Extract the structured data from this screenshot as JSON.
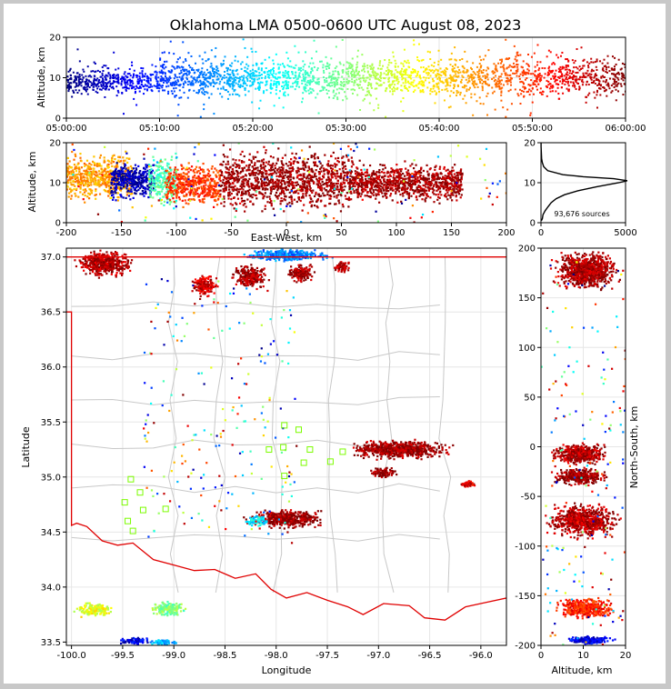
{
  "chart_data": [
    {
      "id": "time_height",
      "type": "scatter",
      "title": "Oklahoma LMA 0500-0600 UTC August 08, 2023",
      "xlabel": "",
      "ylabel": "Altitude, km",
      "x_ticks": [
        "05:00:00",
        "05:10:00",
        "05:20:00",
        "05:30:00",
        "05:40:00",
        "05:50:00",
        "06:00:00"
      ],
      "x_range_minutes": [
        0,
        60
      ],
      "y_ticks": [
        0,
        10,
        20
      ],
      "ylim": [
        0,
        20
      ],
      "color_encoding": "time of source, jet colormap (blue = 05:00, red = 06:00)"
    },
    {
      "id": "ew_height",
      "type": "scatter",
      "xlabel": "East-West, km",
      "ylabel": "Altitude, km",
      "x_ticks": [
        -200,
        -150,
        -100,
        -50,
        0,
        50,
        100,
        150,
        200
      ],
      "xlim": [
        -200,
        200
      ],
      "y_ticks": [
        0,
        10,
        20
      ],
      "ylim": [
        0,
        20
      ],
      "clusters": [
        {
          "x": [
            -200,
            -140
          ],
          "alt": [
            4,
            19
          ],
          "t": 0.72
        },
        {
          "x": [
            -160,
            -120
          ],
          "alt": [
            5,
            16
          ],
          "t": 0.05
        },
        {
          "x": [
            -125,
            -100
          ],
          "alt": [
            3,
            18
          ],
          "t": 0.45
        },
        {
          "x": [
            -110,
            -60
          ],
          "alt": [
            3,
            16
          ],
          "t": 0.82
        },
        {
          "x": [
            -60,
            60
          ],
          "alt": [
            1,
            20
          ],
          "t": 0.97
        },
        {
          "x": [
            60,
            160
          ],
          "alt": [
            4,
            16
          ],
          "t": 0.96
        }
      ]
    },
    {
      "id": "altitude_histogram",
      "type": "line",
      "x_ticks": [
        0,
        5000
      ],
      "xlim": [
        0,
        5000
      ],
      "y_ticks": [
        0,
        10,
        20
      ],
      "ylim": [
        0,
        20
      ],
      "annotation": "93,676 sources",
      "profile": {
        "altitude_km": [
          0.5,
          1,
          2,
          3,
          4,
          5,
          6,
          7,
          8,
          9,
          10,
          10.5,
          11,
          11.5,
          12,
          13,
          14,
          15,
          16,
          17,
          18,
          19,
          20
        ],
        "count": [
          20,
          80,
          120,
          250,
          420,
          600,
          900,
          1400,
          2200,
          3300,
          4600,
          5100,
          4300,
          2500,
          1300,
          400,
          160,
          80,
          40,
          25,
          15,
          8,
          4
        ]
      }
    },
    {
      "id": "plan_view",
      "type": "scatter",
      "xlabel": "Longitude",
      "ylabel": "Latitude",
      "x_ticks": [
        -100.0,
        -99.5,
        -99.0,
        -98.5,
        -98.0,
        -97.5,
        -97.0,
        -96.5,
        -96.0
      ],
      "xlim": [
        -100.05,
        -95.75
      ],
      "y_ticks": [
        33.5,
        34.0,
        34.5,
        35.0,
        35.5,
        36.0,
        36.5,
        37.0
      ],
      "ylim": [
        33.47,
        37.08
      ],
      "clusters": [
        {
          "lon": [
            -100.0,
            -99.35
          ],
          "lat": [
            36.8,
            37.08
          ],
          "t": 0.95
        },
        {
          "lon": [
            -98.85,
            -98.55
          ],
          "lat": [
            36.62,
            36.85
          ],
          "t": 0.92
        },
        {
          "lon": [
            -98.45,
            -98.05
          ],
          "lat": [
            36.7,
            36.95
          ],
          "t": 0.96
        },
        {
          "lon": [
            -97.92,
            -97.6
          ],
          "lat": [
            36.75,
            36.95
          ],
          "t": 0.97
        },
        {
          "lon": [
            -97.45,
            -97.25
          ],
          "lat": [
            36.85,
            36.97
          ],
          "t": 0.95
        },
        {
          "lon": [
            -98.4,
            -97.4
          ],
          "lat": [
            36.95,
            37.08
          ],
          "t": 0.25
        },
        {
          "lon": [
            -97.4,
            -96.2
          ],
          "lat": [
            35.15,
            35.35
          ],
          "t": 0.97
        },
        {
          "lon": [
            -97.1,
            -96.8
          ],
          "lat": [
            34.98,
            35.1
          ],
          "t": 0.98
        },
        {
          "lon": [
            -96.2,
            -96.05
          ],
          "lat": [
            34.9,
            34.97
          ],
          "t": 0.9
        },
        {
          "lon": [
            -98.35,
            -97.45
          ],
          "lat": [
            34.52,
            34.72
          ],
          "t": 0.97
        },
        {
          "lon": [
            -98.35,
            -98.05
          ],
          "lat": [
            34.55,
            34.65
          ],
          "t": 0.35
        },
        {
          "lon": [
            -100.0,
            -99.55
          ],
          "lat": [
            33.72,
            33.87
          ],
          "t": 0.6
        },
        {
          "lon": [
            -99.25,
            -98.85
          ],
          "lat": [
            33.72,
            33.88
          ],
          "t": 0.5
        },
        {
          "lon": [
            -99.55,
            -99.2
          ],
          "lat": [
            33.47,
            33.55
          ],
          "t": 0.1
        },
        {
          "lon": [
            -99.25,
            -98.95
          ],
          "lat": [
            33.47,
            33.53
          ],
          "t": 0.3
        }
      ],
      "stations": [
        {
          "lon": -97.92,
          "lat": 35.47
        },
        {
          "lon": -97.78,
          "lat": 35.43
        },
        {
          "lon": -97.93,
          "lat": 35.27
        },
        {
          "lon": -98.07,
          "lat": 35.25
        },
        {
          "lon": -97.67,
          "lat": 35.25
        },
        {
          "lon": -97.73,
          "lat": 35.13
        },
        {
          "lon": -97.47,
          "lat": 35.14
        },
        {
          "lon": -97.92,
          "lat": 35.01
        },
        {
          "lon": -97.35,
          "lat": 35.23
        },
        {
          "lon": -99.42,
          "lat": 34.98
        },
        {
          "lon": -99.33,
          "lat": 34.86
        },
        {
          "lon": -99.48,
          "lat": 34.77
        },
        {
          "lon": -99.3,
          "lat": 34.7
        },
        {
          "lon": -99.08,
          "lat": 34.71
        },
        {
          "lon": -99.45,
          "lat": 34.6
        },
        {
          "lon": -99.4,
          "lat": 34.51
        }
      ]
    },
    {
      "id": "ns_height",
      "type": "scatter",
      "xlabel": "Altitude, km",
      "ylabel": "North-South, km",
      "x_ticks": [
        0,
        10,
        20
      ],
      "xlim": [
        0,
        20
      ],
      "y_ticks": [
        -200,
        -150,
        -100,
        -50,
        0,
        50,
        100,
        150,
        200
      ],
      "ylim": [
        -200,
        200
      ],
      "clusters": [
        {
          "ns": [
            155,
            200
          ],
          "alt": [
            2,
            20
          ],
          "t": 0.96
        },
        {
          "ns": [
            -20,
            5
          ],
          "alt": [
            1,
            17
          ],
          "t": 0.95
        },
        {
          "ns": [
            -40,
            -20
          ],
          "alt": [
            1,
            17
          ],
          "t": 0.97
        },
        {
          "ns": [
            -95,
            -55
          ],
          "alt": [
            0,
            20
          ],
          "t": 0.95
        },
        {
          "ns": [
            -175,
            -150
          ],
          "alt": [
            3,
            18
          ],
          "t": 0.85
        },
        {
          "ns": [
            -200,
            -190
          ],
          "alt": [
            5,
            18
          ],
          "t": 0.1
        }
      ]
    }
  ]
}
